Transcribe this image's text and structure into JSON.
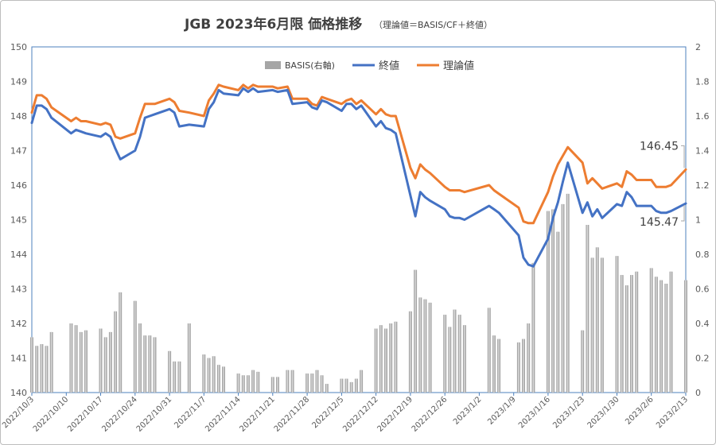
{
  "chart_data": {
    "type": "line",
    "title": "JGB 2023年6月限 価格推移",
    "subtitle": "（理論値＝BASIS/CF＋終値）",
    "legend": [
      {
        "name": "BASIS(右軸)",
        "color": "#a6a6a6",
        "kind": "bar"
      },
      {
        "name": "終値",
        "color": "#4472c4",
        "kind": "line"
      },
      {
        "name": "理論値",
        "color": "#ed7d31",
        "kind": "line"
      }
    ],
    "legend_position": "top-center",
    "ylim_left": [
      140,
      150
    ],
    "yticks_left": [
      "140",
      "141",
      "142",
      "143",
      "144",
      "145",
      "146",
      "147",
      "148",
      "149",
      "150"
    ],
    "ylim_right": [
      0,
      2
    ],
    "yticks_right": [
      "0",
      "0.2",
      "0.4",
      "0.6",
      "0.8",
      "1",
      "1.2",
      "1.4",
      "1.6",
      "1.8",
      "2"
    ],
    "xlim": [
      "2022-10-03",
      "2023-02-13"
    ],
    "xticks": [
      "2022/10/3",
      "2022/10/10",
      "2022/10/17",
      "2022/10/24",
      "2022/10/31",
      "2022/11/7",
      "2022/11/14",
      "2022/11/21",
      "2022/11/28",
      "2022/12/5",
      "2022/12/12",
      "2022/12/19",
      "2022/12/26",
      "2023/1/2",
      "2023/1/9",
      "2023/1/16",
      "2023/1/23",
      "2023/1/30",
      "2023/2/6",
      "2023/2/13"
    ],
    "annotations": [
      {
        "text": "146.45",
        "x": "2023-02-13",
        "y": 146.45
      },
      {
        "text": "145.47",
        "x": "2023-02-13",
        "y": 145.47
      }
    ],
    "series": [
      {
        "name": "終値",
        "color": "#4472c4",
        "x": [
          "2022-10-03",
          "2022-10-04",
          "2022-10-05",
          "2022-10-06",
          "2022-10-07",
          "2022-10-11",
          "2022-10-12",
          "2022-10-13",
          "2022-10-14",
          "2022-10-17",
          "2022-10-18",
          "2022-10-19",
          "2022-10-20",
          "2022-10-21",
          "2022-10-24",
          "2022-10-25",
          "2022-10-26",
          "2022-10-27",
          "2022-10-28",
          "2022-10-31",
          "2022-11-01",
          "2022-11-02",
          "2022-11-04",
          "2022-11-07",
          "2022-11-08",
          "2022-11-09",
          "2022-11-10",
          "2022-11-11",
          "2022-11-14",
          "2022-11-15",
          "2022-11-16",
          "2022-11-17",
          "2022-11-18",
          "2022-11-21",
          "2022-11-22",
          "2022-11-24",
          "2022-11-25",
          "2022-11-28",
          "2022-11-29",
          "2022-11-30",
          "2022-12-01",
          "2022-12-02",
          "2022-12-05",
          "2022-12-06",
          "2022-12-07",
          "2022-12-08",
          "2022-12-09",
          "2022-12-12",
          "2022-12-13",
          "2022-12-14",
          "2022-12-15",
          "2022-12-16",
          "2022-12-19",
          "2022-12-20",
          "2022-12-21",
          "2022-12-22",
          "2022-12-23",
          "2022-12-26",
          "2022-12-27",
          "2022-12-28",
          "2022-12-29",
          "2022-12-30",
          "2023-01-04",
          "2023-01-05",
          "2023-01-06",
          "2023-01-10",
          "2023-01-11",
          "2023-01-12",
          "2023-01-13",
          "2023-01-16",
          "2023-01-17",
          "2023-01-18",
          "2023-01-19",
          "2023-01-20",
          "2023-01-23",
          "2023-01-24",
          "2023-01-25",
          "2023-01-26",
          "2023-01-27",
          "2023-01-30",
          "2023-01-31",
          "2023-02-01",
          "2023-02-02",
          "2023-02-03",
          "2023-02-06",
          "2023-02-07",
          "2023-02-08",
          "2023-02-09",
          "2023-02-10",
          "2023-02-13"
        ],
        "values": [
          147.8,
          148.3,
          148.3,
          148.2,
          147.95,
          147.5,
          147.6,
          147.55,
          147.5,
          147.4,
          147.5,
          147.4,
          147.05,
          146.75,
          147.0,
          147.4,
          147.95,
          148.0,
          148.05,
          148.2,
          148.1,
          147.7,
          147.75,
          147.7,
          148.2,
          148.4,
          148.75,
          148.65,
          148.6,
          148.8,
          148.7,
          148.8,
          148.7,
          148.75,
          148.7,
          148.75,
          148.35,
          148.4,
          148.25,
          148.2,
          148.45,
          148.4,
          148.15,
          148.35,
          148.35,
          148.2,
          148.3,
          147.7,
          147.85,
          147.65,
          147.6,
          147.5,
          145.7,
          145.1,
          145.8,
          145.65,
          145.55,
          145.3,
          145.1,
          145.05,
          145.05,
          145.0,
          145.4,
          145.3,
          145.2,
          144.55,
          143.9,
          143.7,
          143.65,
          144.45,
          145.05,
          145.5,
          146.1,
          146.65,
          145.2,
          145.5,
          145.1,
          145.3,
          145.05,
          145.45,
          145.4,
          145.8,
          145.65,
          145.4,
          145.4,
          145.25,
          145.2,
          145.2,
          145.25,
          145.47
        ]
      },
      {
        "name": "理論値",
        "color": "#ed7d31",
        "x": [
          "2022-10-03",
          "2022-10-04",
          "2022-10-05",
          "2022-10-06",
          "2022-10-07",
          "2022-10-11",
          "2022-10-12",
          "2022-10-13",
          "2022-10-14",
          "2022-10-17",
          "2022-10-18",
          "2022-10-19",
          "2022-10-20",
          "2022-10-21",
          "2022-10-24",
          "2022-10-25",
          "2022-10-26",
          "2022-10-27",
          "2022-10-28",
          "2022-10-31",
          "2022-11-01",
          "2022-11-02",
          "2022-11-04",
          "2022-11-07",
          "2022-11-08",
          "2022-11-09",
          "2022-11-10",
          "2022-11-11",
          "2022-11-14",
          "2022-11-15",
          "2022-11-16",
          "2022-11-17",
          "2022-11-18",
          "2022-11-21",
          "2022-11-22",
          "2022-11-24",
          "2022-11-25",
          "2022-11-28",
          "2022-11-29",
          "2022-11-30",
          "2022-12-01",
          "2022-12-02",
          "2022-12-05",
          "2022-12-06",
          "2022-12-07",
          "2022-12-08",
          "2022-12-09",
          "2022-12-12",
          "2022-12-13",
          "2022-12-14",
          "2022-12-15",
          "2022-12-16",
          "2022-12-19",
          "2022-12-20",
          "2022-12-21",
          "2022-12-22",
          "2022-12-23",
          "2022-12-26",
          "2022-12-27",
          "2022-12-28",
          "2022-12-29",
          "2022-12-30",
          "2023-01-04",
          "2023-01-05",
          "2023-01-06",
          "2023-01-10",
          "2023-01-11",
          "2023-01-12",
          "2023-01-13",
          "2023-01-16",
          "2023-01-17",
          "2023-01-18",
          "2023-01-19",
          "2023-01-20",
          "2023-01-23",
          "2023-01-24",
          "2023-01-25",
          "2023-01-26",
          "2023-01-27",
          "2023-01-30",
          "2023-01-31",
          "2023-02-01",
          "2023-02-02",
          "2023-02-03",
          "2023-02-06",
          "2023-02-07",
          "2023-02-08",
          "2023-02-09",
          "2023-02-10",
          "2023-02-13"
        ],
        "values": [
          148.1,
          148.6,
          148.6,
          148.5,
          148.25,
          147.85,
          147.95,
          147.85,
          147.85,
          147.75,
          147.8,
          147.75,
          147.4,
          147.35,
          147.5,
          147.95,
          148.35,
          148.35,
          148.35,
          148.5,
          148.4,
          148.15,
          148.1,
          148.0,
          148.45,
          148.65,
          148.9,
          148.85,
          148.75,
          148.9,
          148.8,
          148.9,
          148.85,
          148.85,
          148.8,
          148.85,
          148.5,
          148.5,
          148.35,
          148.3,
          148.55,
          148.5,
          148.35,
          148.45,
          148.5,
          148.35,
          148.45,
          148.05,
          148.2,
          148.05,
          148.0,
          148.0,
          146.5,
          146.2,
          146.6,
          146.45,
          146.35,
          145.95,
          145.85,
          145.85,
          145.85,
          145.8,
          146.0,
          145.85,
          145.75,
          145.35,
          144.95,
          144.9,
          144.9,
          145.8,
          146.25,
          146.6,
          146.85,
          147.1,
          146.65,
          146.05,
          146.2,
          146.05,
          145.9,
          146.05,
          145.95,
          146.4,
          146.3,
          146.15,
          146.15,
          145.95,
          145.95,
          145.95,
          146.0,
          146.45
        ]
      },
      {
        "name": "BASIS(右軸)",
        "color": "#a6a6a6",
        "axis": "right",
        "x": [
          "2022-10-03",
          "2022-10-04",
          "2022-10-05",
          "2022-10-06",
          "2022-10-07",
          "2022-10-11",
          "2022-10-12",
          "2022-10-13",
          "2022-10-14",
          "2022-10-17",
          "2022-10-18",
          "2022-10-19",
          "2022-10-20",
          "2022-10-21",
          "2022-10-24",
          "2022-10-25",
          "2022-10-26",
          "2022-10-27",
          "2022-10-28",
          "2022-10-31",
          "2022-11-01",
          "2022-11-02",
          "2022-11-04",
          "2022-11-07",
          "2022-11-08",
          "2022-11-09",
          "2022-11-10",
          "2022-11-11",
          "2022-11-14",
          "2022-11-15",
          "2022-11-16",
          "2022-11-17",
          "2022-11-18",
          "2022-11-21",
          "2022-11-22",
          "2022-11-24",
          "2022-11-25",
          "2022-11-28",
          "2022-11-29",
          "2022-11-30",
          "2022-12-01",
          "2022-12-02",
          "2022-12-05",
          "2022-12-06",
          "2022-12-07",
          "2022-12-08",
          "2022-12-09",
          "2022-12-12",
          "2022-12-13",
          "2022-12-14",
          "2022-12-15",
          "2022-12-16",
          "2022-12-19",
          "2022-12-20",
          "2022-12-21",
          "2022-12-22",
          "2022-12-23",
          "2022-12-26",
          "2022-12-27",
          "2022-12-28",
          "2022-12-29",
          "2022-12-30",
          "2023-01-04",
          "2023-01-05",
          "2023-01-06",
          "2023-01-10",
          "2023-01-11",
          "2023-01-12",
          "2023-01-13",
          "2023-01-16",
          "2023-01-17",
          "2023-01-18",
          "2023-01-19",
          "2023-01-20",
          "2023-01-23",
          "2023-01-24",
          "2023-01-25",
          "2023-01-26",
          "2023-01-27",
          "2023-01-30",
          "2023-01-31",
          "2023-02-01",
          "2023-02-02",
          "2023-02-03",
          "2023-02-06",
          "2023-02-07",
          "2023-02-08",
          "2023-02-09",
          "2023-02-10",
          "2023-02-13"
        ],
        "values": [
          0.32,
          0.27,
          0.28,
          0.27,
          0.35,
          0.4,
          0.39,
          0.35,
          0.36,
          0.37,
          0.32,
          0.35,
          0.47,
          0.58,
          0.53,
          0.4,
          0.33,
          0.33,
          0.32,
          0.24,
          0.18,
          0.18,
          0.4,
          0.22,
          0.2,
          0.21,
          0.16,
          0.15,
          0.11,
          0.1,
          0.1,
          0.13,
          0.12,
          0.09,
          0.09,
          0.13,
          0.13,
          0.11,
          0.11,
          0.13,
          0.1,
          0.05,
          0.08,
          0.08,
          0.06,
          0.08,
          0.13,
          0.37,
          0.39,
          0.37,
          0.4,
          0.41,
          0.47,
          0.71,
          0.55,
          0.54,
          0.52,
          0.45,
          0.38,
          0.48,
          0.45,
          0.39,
          0.49,
          0.33,
          0.31,
          0.29,
          0.31,
          0.4,
          0.75,
          1.05,
          1.06,
          0.93,
          1.09,
          1.15,
          0.36,
          0.97,
          0.78,
          0.84,
          0.78,
          0.79,
          0.68,
          0.62,
          0.68,
          0.7,
          0.72,
          0.67,
          0.65,
          0.63,
          0.7,
          0.65
        ]
      }
    ]
  }
}
